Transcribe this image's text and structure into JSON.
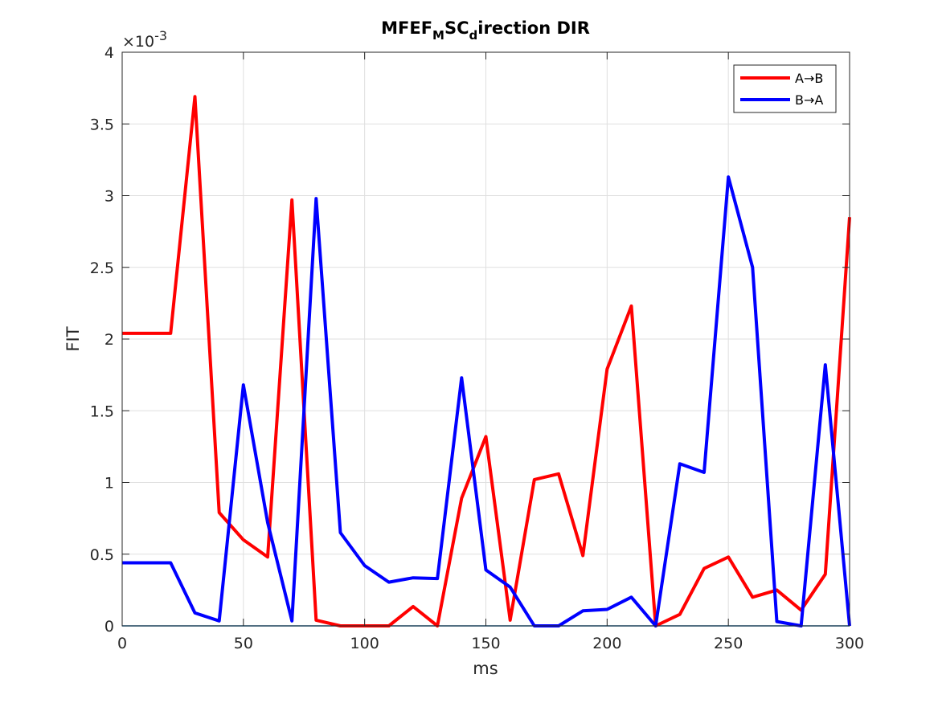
{
  "chart_data": {
    "type": "line",
    "title": {
      "parts": [
        {
          "text": "MFEF",
          "sub": false
        },
        {
          "text": "M",
          "sub": true
        },
        {
          "text": "SC",
          "sub": false
        },
        {
          "text": "d",
          "sub": true
        },
        {
          "text": "irection DIR",
          "sub": false
        }
      ]
    },
    "xlabel": "ms",
    "ylabel": "FIT",
    "y_exponent_label": "×10",
    "y_exponent_power": "-3",
    "y_scale": 0.001,
    "xlim": [
      0,
      300
    ],
    "ylim": [
      0,
      4
    ],
    "xticks": [
      0,
      50,
      100,
      150,
      200,
      250,
      300
    ],
    "yticks": [
      0,
      0.5,
      1,
      1.5,
      2,
      2.5,
      3,
      3.5,
      4
    ],
    "ytick_labels": [
      "0",
      "0.5",
      "1",
      "1.5",
      "2",
      "2.5",
      "3",
      "3.5",
      "4"
    ],
    "grid": true,
    "legend_position": "top-right",
    "baseline": {
      "y": 0,
      "color": "#0072bd"
    },
    "x": [
      0,
      10,
      20,
      30,
      40,
      50,
      60,
      70,
      80,
      90,
      100,
      110,
      120,
      130,
      140,
      150,
      160,
      170,
      180,
      190,
      200,
      210,
      220,
      230,
      240,
      250,
      260,
      270,
      280,
      290,
      300
    ],
    "series": [
      {
        "name": "A→B",
        "color": "#ff0000",
        "values": [
          2.04,
          2.04,
          2.04,
          3.69,
          0.79,
          0.6,
          0.48,
          2.97,
          0.04,
          0.0,
          0.0,
          0.0,
          0.135,
          0.0,
          0.89,
          1.32,
          0.04,
          1.02,
          1.06,
          0.49,
          1.79,
          2.23,
          0.0,
          0.08,
          0.4,
          0.48,
          0.2,
          0.25,
          0.11,
          0.36,
          2.85
        ]
      },
      {
        "name": "B→A",
        "color": "#0000ff",
        "values": [
          0.44,
          0.44,
          0.44,
          0.09,
          0.035,
          1.68,
          0.72,
          0.035,
          2.98,
          0.65,
          0.42,
          0.305,
          0.335,
          0.33,
          1.73,
          0.39,
          0.27,
          0.0,
          0.0,
          0.105,
          0.115,
          0.2,
          0.0,
          1.13,
          1.07,
          3.13,
          2.5,
          0.03,
          0.0,
          1.82,
          0.0
        ]
      }
    ]
  }
}
